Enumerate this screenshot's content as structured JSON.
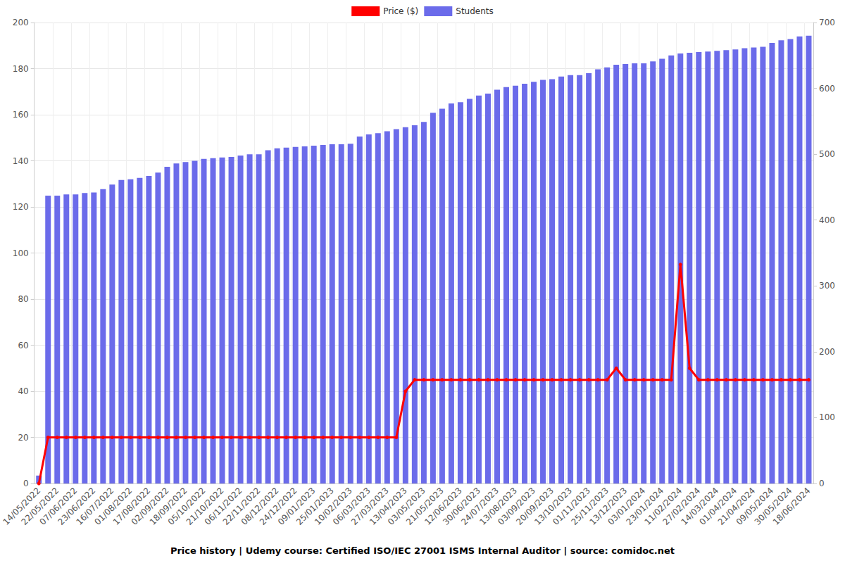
{
  "chart_data": {
    "type": "bar",
    "title": "Price history | Udemy course: Certified ISO/IEC 27001 ISMS Internal Auditor | source: comidoc.net",
    "categories": [
      "14/05/2022",
      null,
      "22/05/2022",
      null,
      "07/06/2022",
      null,
      "23/06/2022",
      null,
      "16/07/2022",
      null,
      "01/08/2022",
      null,
      "17/08/2022",
      null,
      "02/09/2022",
      null,
      "18/09/2022",
      null,
      "05/10/2022",
      null,
      "21/10/2022",
      null,
      "06/11/2022",
      null,
      "22/11/2022",
      null,
      "08/12/2022",
      null,
      "24/12/2022",
      null,
      "09/01/2023",
      null,
      "25/01/2023",
      null,
      "10/02/2023",
      null,
      "06/03/2023",
      null,
      "27/03/2023",
      null,
      "13/04/2023",
      null,
      "03/05/2023",
      null,
      "21/05/2023",
      null,
      "12/06/2023",
      null,
      "30/06/2023",
      null,
      "24/07/2023",
      null,
      "13/08/2023",
      null,
      "03/09/2023",
      null,
      "20/09/2023",
      null,
      "13/10/2023",
      null,
      "01/11/2023",
      null,
      "25/11/2023",
      null,
      "13/12/2023",
      null,
      "03/01/2024",
      null,
      "23/01/2024",
      null,
      "11/02/2024",
      null,
      "27/02/2024",
      null,
      "14/03/2024",
      null,
      "01/04/2024",
      null,
      "21/04/2024",
      null,
      "09/05/2024",
      null,
      "30/05/2024",
      null,
      "18/06/2024"
    ],
    "series": [
      {
        "name": "Price ($)",
        "type": "line",
        "color": "#ff0000",
        "marker": "circle",
        "values": [
          0,
          20,
          20,
          20,
          20,
          20,
          20,
          20,
          20,
          20,
          20,
          20,
          20,
          20,
          20,
          20,
          20,
          20,
          20,
          20,
          20,
          20,
          20,
          20,
          20,
          20,
          20,
          20,
          20,
          20,
          20,
          20,
          20,
          20,
          20,
          20,
          20,
          20,
          20,
          20,
          40,
          45,
          45,
          45,
          45,
          45,
          45,
          45,
          45,
          45,
          45,
          45,
          45,
          45,
          45,
          45,
          45,
          45,
          45,
          45,
          45,
          45,
          45,
          50,
          45,
          45,
          45,
          45,
          45,
          45,
          95,
          50,
          45,
          45,
          45,
          45,
          45,
          45,
          45,
          45,
          45,
          45,
          45,
          45,
          45
        ]
      },
      {
        "name": "Students",
        "type": "bar",
        "color": "#6b6bea",
        "axis": "y2",
        "values": [
          12,
          437,
          437,
          439,
          439,
          441,
          442,
          447,
          454,
          461,
          462,
          464,
          467,
          472,
          481,
          486,
          488,
          490,
          493,
          494,
          495,
          496,
          498,
          500,
          500,
          506,
          509,
          510,
          511,
          512,
          513,
          514,
          515,
          515,
          516,
          527,
          530,
          532,
          535,
          538,
          541,
          544,
          549,
          563,
          569,
          577,
          579,
          584,
          589,
          592,
          598,
          602,
          604,
          607,
          610,
          613,
          614,
          618,
          620,
          620,
          623,
          629,
          632,
          636,
          637,
          638,
          638,
          641,
          645,
          650,
          653,
          654,
          655,
          656,
          657,
          658,
          659,
          661,
          662,
          663,
          669,
          673,
          675,
          679,
          680
        ]
      }
    ],
    "ylim": [
      0,
      200
    ],
    "yticks": [
      0,
      20,
      40,
      60,
      80,
      100,
      120,
      140,
      160,
      180,
      200
    ],
    "y2lim": [
      0,
      700
    ],
    "y2ticks": [
      0,
      100,
      200,
      300,
      400,
      500,
      600,
      700
    ],
    "grid": true,
    "legend": "top"
  }
}
